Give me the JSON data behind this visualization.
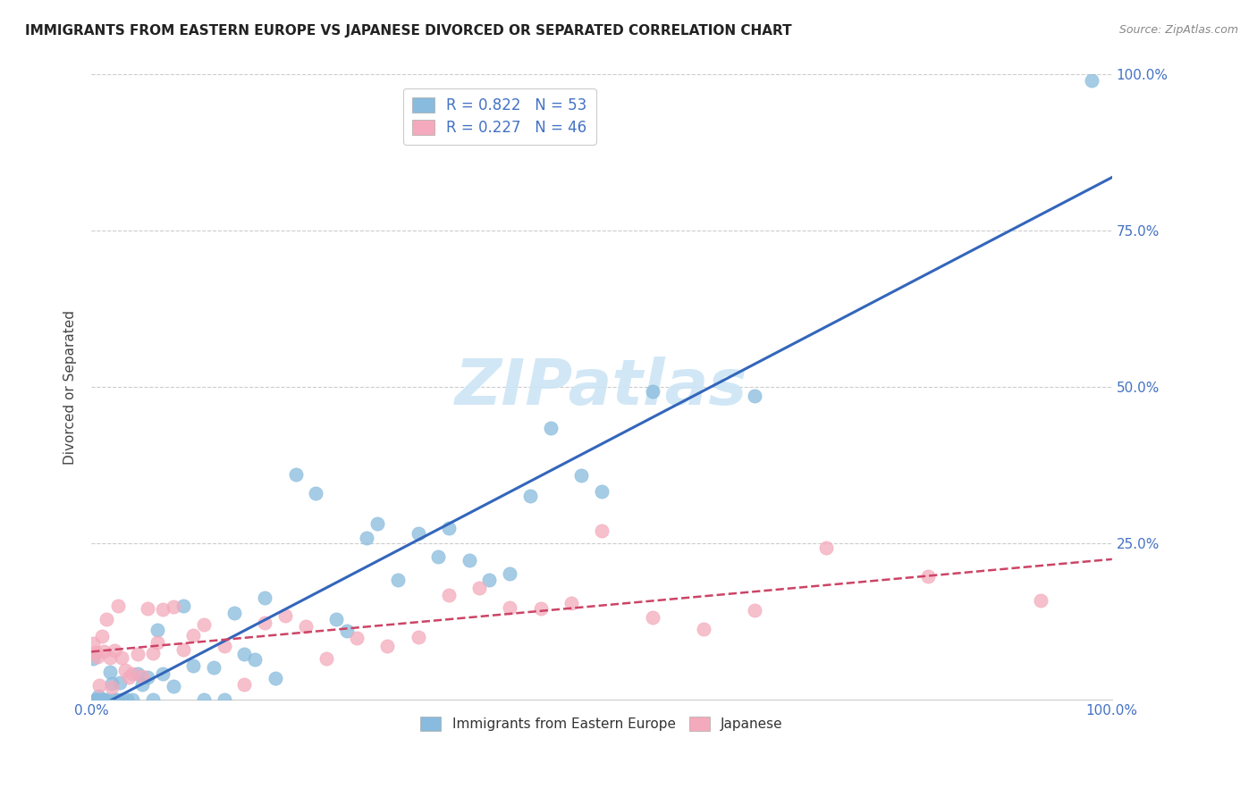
{
  "title": "IMMIGRANTS FROM EASTERN EUROPE VS JAPANESE DIVORCED OR SEPARATED CORRELATION CHART",
  "source": "Source: ZipAtlas.com",
  "ylabel": "Divorced or Separated",
  "blue_R": 0.822,
  "blue_N": 53,
  "pink_R": 0.227,
  "pink_N": 46,
  "blue_color": "#88bbdd",
  "pink_color": "#f4aabc",
  "blue_edge_color": "#88bbdd",
  "pink_edge_color": "#f4aabc",
  "blue_line_color": "#3366bb",
  "pink_line_color": "#cc4466",
  "watermark_color": "#cce5f5",
  "legend_label_blue": "Immigrants from Eastern Europe",
  "legend_label_pink": "Japanese",
  "ytick_color": "#4472c4",
  "xtick_color": "#4472c4",
  "grid_color": "#cccccc"
}
